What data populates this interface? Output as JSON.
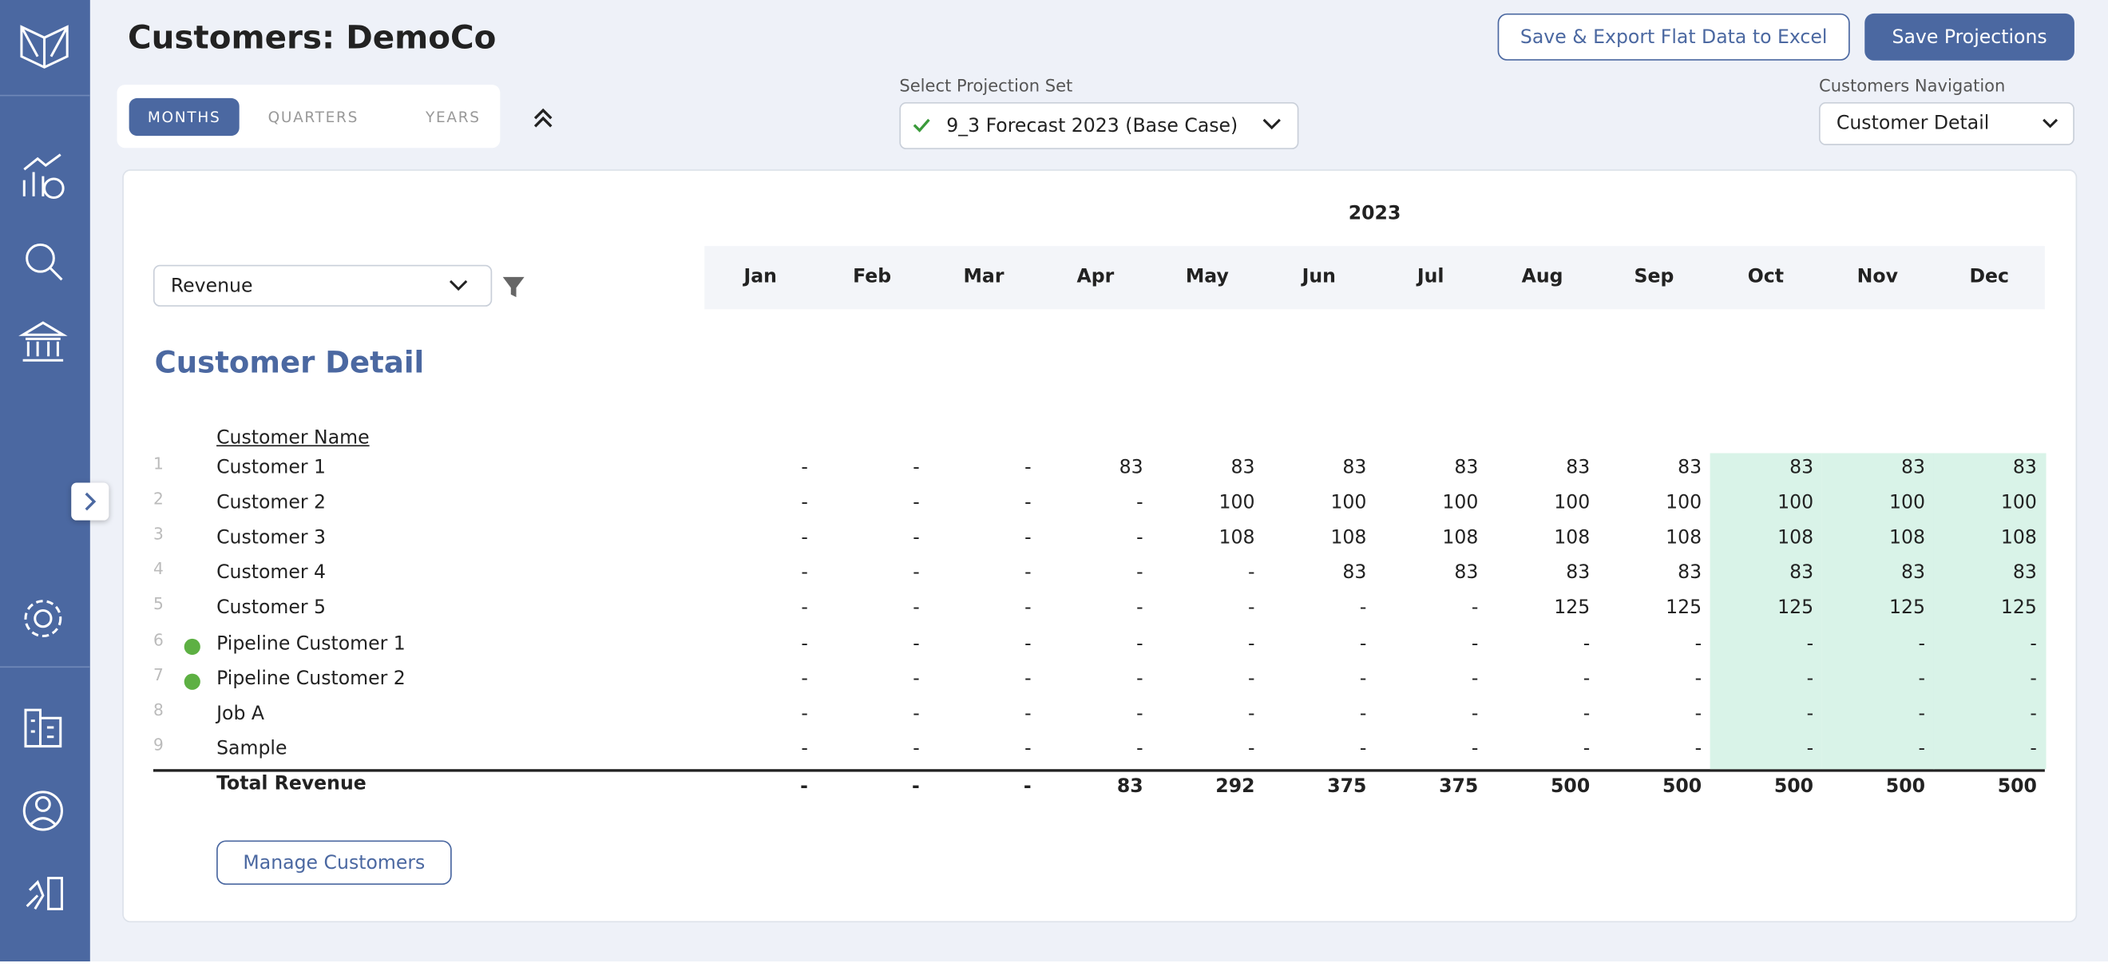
{
  "header": {
    "title": "Customers: DemoCo",
    "export_button": "Save & Export Flat Data to Excel",
    "save_button": "Save Projections"
  },
  "tabs": [
    "MONTHS",
    "QUARTERS",
    "YEARS"
  ],
  "projection_set": {
    "label": "Select Projection Set",
    "value": "9_3 Forecast 2023 (Base Case)"
  },
  "navigation": {
    "label": "Customers Navigation",
    "value": "Customer Detail"
  },
  "metric_select": "Revenue",
  "section_title": "Customer Detail",
  "table": {
    "year": "2023",
    "months": [
      "Jan",
      "Feb",
      "Mar",
      "Apr",
      "May",
      "Jun",
      "Jul",
      "Aug",
      "Sep",
      "Oct",
      "Nov",
      "Dec"
    ],
    "name_header": "Customer Name",
    "rows": [
      {
        "number": 1,
        "name": "Customer 1",
        "values": [
          "-",
          "-",
          "-",
          83,
          83,
          83,
          83,
          83,
          83,
          83,
          83,
          83
        ]
      },
      {
        "number": 2,
        "name": "Customer 2",
        "values": [
          "-",
          "-",
          "-",
          "-",
          100,
          100,
          100,
          100,
          100,
          100,
          100,
          100
        ]
      },
      {
        "number": 3,
        "name": "Customer 3",
        "values": [
          "-",
          "-",
          "-",
          "-",
          108,
          108,
          108,
          108,
          108,
          108,
          108,
          108
        ]
      },
      {
        "number": 4,
        "name": "Customer 4",
        "values": [
          "-",
          "-",
          "-",
          "-",
          "-",
          83,
          83,
          83,
          83,
          83,
          83,
          83
        ]
      },
      {
        "number": 5,
        "name": "Customer 5",
        "values": [
          "-",
          "-",
          "-",
          "-",
          "-",
          "-",
          "-",
          125,
          125,
          125,
          125,
          125
        ]
      },
      {
        "number": 6,
        "name": "Pipeline Customer 1",
        "marker_color": "#5db043",
        "values": [
          "-",
          "-",
          "-",
          "-",
          "-",
          "-",
          "-",
          "-",
          "-",
          "-",
          "-",
          "-"
        ]
      },
      {
        "number": 7,
        "name": "Pipeline Customer 2",
        "marker_color": "#5db043",
        "values": [
          "-",
          "-",
          "-",
          "-",
          "-",
          "-",
          "-",
          "-",
          "-",
          "-",
          "-",
          "-"
        ]
      },
      {
        "number": 8,
        "name": "Job A",
        "values": [
          "-",
          "-",
          "-",
          "-",
          "-",
          "-",
          "-",
          "-",
          "-",
          "-",
          "-",
          "-"
        ]
      },
      {
        "number": 9,
        "name": "Sample",
        "values": [
          "-",
          "-",
          "-",
          "-",
          "-",
          "-",
          "-",
          "-",
          "-",
          "-",
          "-",
          "-"
        ]
      }
    ],
    "total": {
      "name": "Total Revenue",
      "values": [
        "-",
        "-",
        "-",
        83,
        292,
        375,
        375,
        500,
        500,
        500,
        500,
        500
      ]
    }
  },
  "manage_button": "Manage Customers"
}
